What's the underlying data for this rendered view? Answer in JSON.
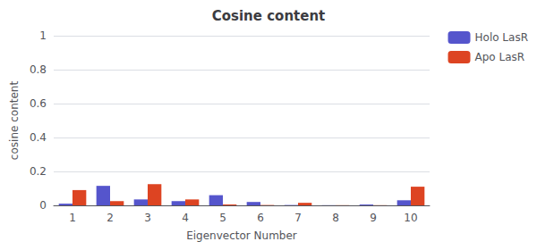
{
  "chart_data": {
    "type": "bar",
    "title": "Cosine content",
    "xlabel": "Eigenvector Number",
    "ylabel": "cosine content",
    "categories": [
      1,
      2,
      3,
      4,
      5,
      6,
      7,
      8,
      9,
      10
    ],
    "series": [
      {
        "name": "Holo LasR",
        "color": "#5555cc",
        "values": [
          0.01,
          0.115,
          0.035,
          0.025,
          0.06,
          0.02,
          0.002,
          0.001,
          0.005,
          0.03
        ]
      },
      {
        "name": "Apo LasR",
        "color": "#dd4422",
        "values": [
          0.09,
          0.025,
          0.125,
          0.035,
          0.005,
          0.002,
          0.015,
          0.001,
          0.001,
          0.11
        ]
      }
    ],
    "ylim": [
      0,
      1
    ],
    "yticks": [
      0,
      0.2,
      0.4,
      0.6,
      0.8,
      1
    ],
    "grid": true,
    "legend": "upper right"
  }
}
